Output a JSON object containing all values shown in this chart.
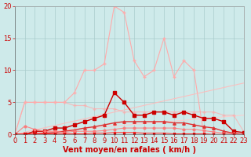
{
  "background_color": "#ceeaea",
  "grid_color": "#aacccc",
  "x_min": 0,
  "x_max": 23,
  "y_min": 0,
  "y_max": 20,
  "xlabel": "Vent moyen/en rafales ( km/h )",
  "xlabel_color": "#cc0000",
  "xlabel_fontsize": 7,
  "tick_color": "#cc0000",
  "tick_fontsize": 6,
  "yticks": [
    0,
    5,
    10,
    15,
    20
  ],
  "xticks": [
    0,
    1,
    2,
    3,
    4,
    5,
    6,
    7,
    8,
    9,
    10,
    11,
    12,
    13,
    14,
    15,
    16,
    17,
    18,
    19,
    20,
    21,
    22,
    23
  ],
  "lines": [
    {
      "x": [
        0,
        1,
        2,
        3,
        4,
        5,
        6,
        7,
        8,
        9,
        10,
        11,
        12,
        13,
        14,
        15,
        16,
        17,
        18,
        19,
        20,
        21,
        22,
        23
      ],
      "y": [
        0,
        5,
        5,
        5,
        5,
        5,
        6.5,
        10,
        10,
        11,
        20,
        19,
        11.5,
        9,
        10,
        15,
        9,
        11.5,
        10,
        0,
        0,
        0,
        0,
        0
      ],
      "color": "#ffaaaa",
      "lw": 0.8,
      "marker": "+",
      "markersize": 3,
      "alpha": 1.0
    },
    {
      "x": [
        0,
        23
      ],
      "y": [
        0,
        8
      ],
      "color": "#ffbbbb",
      "lw": 0.8,
      "marker": null,
      "markersize": 0,
      "alpha": 0.9
    },
    {
      "x": [
        0,
        23
      ],
      "y": [
        0,
        3
      ],
      "color": "#ffcccc",
      "lw": 0.8,
      "marker": null,
      "markersize": 0,
      "alpha": 0.9
    },
    {
      "x": [
        0,
        1,
        2,
        3,
        4,
        5,
        6,
        7,
        8,
        9,
        10,
        11,
        12,
        13,
        14,
        15,
        16,
        17,
        18,
        19,
        20,
        21,
        22,
        23
      ],
      "y": [
        0,
        5,
        5,
        5,
        5,
        5,
        4.5,
        4.5,
        4,
        4,
        4,
        3.5,
        3.5,
        3.5,
        3.5,
        3.5,
        3.5,
        3.5,
        3.5,
        3.5,
        3.5,
        3.0,
        3.0,
        0.5
      ],
      "color": "#ffaaaa",
      "lw": 0.8,
      "marker": "+",
      "markersize": 3,
      "alpha": 0.7
    },
    {
      "x": [
        0,
        1,
        2,
        3,
        4,
        5,
        6,
        7,
        8,
        9,
        10,
        11,
        12,
        13,
        14,
        15,
        16,
        17,
        18,
        19,
        20,
        21,
        22,
        23
      ],
      "y": [
        0,
        0,
        0.5,
        0.5,
        1,
        1,
        1.5,
        2,
        2.5,
        3,
        6.5,
        5,
        3,
        3,
        3.5,
        3.5,
        3,
        3.5,
        3,
        2.5,
        2.5,
        2,
        0.5,
        0.3
      ],
      "color": "#cc0000",
      "lw": 1.0,
      "marker": "s",
      "markersize": 2.5,
      "alpha": 1.0
    },
    {
      "x": [
        0,
        1,
        2,
        3,
        4,
        5,
        6,
        7,
        8,
        9,
        10,
        11,
        12,
        13,
        14,
        15,
        16,
        17,
        18,
        19,
        20,
        21,
        22,
        23
      ],
      "y": [
        0,
        0,
        0.1,
        0.2,
        0.3,
        0.5,
        0.7,
        1.0,
        1.2,
        1.5,
        1.8,
        2.0,
        2.0,
        2.0,
        2.0,
        2.0,
        1.8,
        1.8,
        1.5,
        1.2,
        1.0,
        0.5,
        0.2,
        0.0
      ],
      "color": "#dd3333",
      "lw": 1.0,
      "marker": "^",
      "markersize": 2.5,
      "alpha": 1.0
    },
    {
      "x": [
        0,
        1,
        2,
        3,
        4,
        5,
        6,
        7,
        8,
        9,
        10,
        11,
        12,
        13,
        14,
        15,
        16,
        17,
        18,
        19,
        20,
        21,
        22,
        23
      ],
      "y": [
        0,
        1.3,
        0.8,
        0.5,
        0.5,
        0.3,
        0.5,
        0.5,
        0.5,
        0.6,
        0.8,
        1.0,
        1.0,
        1.0,
        1.0,
        1.0,
        1.0,
        0.8,
        0.8,
        0.6,
        0.4,
        0.2,
        0.1,
        0.0
      ],
      "color": "#ff7777",
      "lw": 0.8,
      "marker": "o",
      "markersize": 2,
      "alpha": 0.85
    },
    {
      "x": [
        0,
        1,
        2,
        3,
        4,
        5,
        6,
        7,
        8,
        9,
        10,
        11,
        12,
        13,
        14,
        15,
        16,
        17,
        18,
        19,
        20,
        21,
        22,
        23
      ],
      "y": [
        0,
        0.1,
        0.1,
        0.1,
        0.1,
        0.1,
        0.1,
        0.1,
        0.2,
        0.2,
        0.3,
        0.3,
        0.3,
        0.2,
        0.2,
        0.2,
        0.1,
        0.1,
        0.1,
        0.1,
        0,
        0,
        0,
        0
      ],
      "color": "#ff2222",
      "lw": 0.7,
      "marker": "x",
      "markersize": 2,
      "alpha": 1.0
    },
    {
      "x": [
        0,
        1,
        2,
        3,
        4,
        5,
        6,
        7,
        8,
        9,
        10,
        11,
        12,
        13,
        14,
        15,
        16,
        17,
        18,
        19,
        20,
        21,
        22,
        23
      ],
      "y": [
        0,
        0,
        0,
        0,
        0,
        0,
        0,
        0,
        0,
        0,
        0,
        0,
        0,
        0,
        0,
        0,
        0,
        0,
        0,
        0,
        0,
        0,
        0,
        0
      ],
      "color": "#aa0000",
      "lw": 0.8,
      "marker": "x",
      "markersize": 2,
      "alpha": 1.0
    }
  ]
}
